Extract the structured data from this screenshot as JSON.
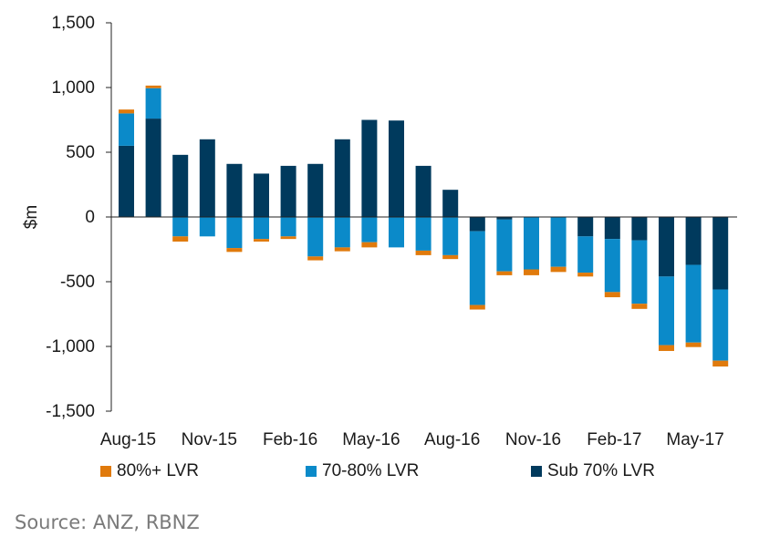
{
  "chart_data": {
    "type": "bar",
    "stacked": true,
    "ylabel": "$m",
    "xlabel": "",
    "ylim": [
      -1500,
      1500
    ],
    "yticks": [
      1500,
      1000,
      500,
      0,
      -500,
      -1000,
      -1500
    ],
    "ytick_labels": [
      "1,500",
      "1,000",
      "500",
      "0",
      "-500",
      "-1,000",
      "-1,500"
    ],
    "xtick_labels": [
      "Aug-15",
      "Nov-15",
      "Feb-16",
      "May-16",
      "Aug-16",
      "Nov-16",
      "Feb-17",
      "May-17"
    ],
    "xtick_label_every": 3,
    "categories": [
      "Aug-15",
      "Sep-15",
      "Oct-15",
      "Nov-15",
      "Dec-15",
      "Jan-16",
      "Feb-16",
      "Mar-16",
      "Apr-16",
      "May-16",
      "Jun-16",
      "Jul-16",
      "Aug-16",
      "Sep-16",
      "Oct-16",
      "Nov-16",
      "Dec-16",
      "Jan-17",
      "Feb-17",
      "Mar-17",
      "Apr-17",
      "May-17",
      "Jun-17"
    ],
    "series": [
      {
        "name": "Sub 70% LVR",
        "color": "#003a5d",
        "values": [
          550,
          760,
          480,
          600,
          410,
          335,
          395,
          410,
          600,
          750,
          745,
          395,
          210,
          -110,
          -20,
          0,
          0,
          -150,
          -170,
          -180,
          -460,
          -370,
          -560
        ]
      },
      {
        "name": "70-80% LVR",
        "color": "#0b8ac9",
        "values": [
          250,
          235,
          -150,
          -150,
          -240,
          -170,
          -150,
          -305,
          -235,
          -195,
          -235,
          -260,
          -295,
          -570,
          -400,
          -405,
          -385,
          -280,
          -410,
          -490,
          -530,
          -600,
          -550
        ]
      },
      {
        "name": "80%+ LVR",
        "color": "#e07a0c",
        "values": [
          30,
          20,
          -40,
          0,
          -30,
          -20,
          -20,
          -30,
          -30,
          -40,
          0,
          -35,
          -30,
          -35,
          -30,
          -45,
          -40,
          -30,
          -40,
          -40,
          -45,
          -35,
          -45
        ]
      }
    ],
    "legend_order": [
      "80%+ LVR",
      "70-80% LVR",
      "Sub 70% LVR"
    ],
    "legend_position": "bottom",
    "grid": false
  },
  "footer": {
    "source": "Source: ANZ, RBNZ"
  }
}
